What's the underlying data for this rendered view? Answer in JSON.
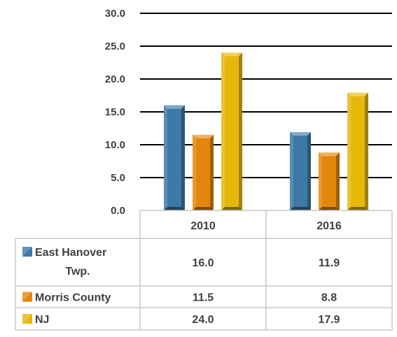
{
  "chart_data": {
    "type": "bar",
    "categories": [
      "2010",
      "2016"
    ],
    "series": [
      {
        "name": "East Hanover Twp.",
        "values": [
          16.0,
          11.9
        ],
        "labels": [
          "16.0",
          "11.9"
        ],
        "color": "#3D79A6"
      },
      {
        "name": "Morris County",
        "values": [
          11.5,
          8.8
        ],
        "labels": [
          "11.5",
          "8.8"
        ],
        "color": "#E3870C"
      },
      {
        "name": "NJ",
        "values": [
          24.0,
          17.9
        ],
        "labels": [
          "24.0",
          "17.9"
        ],
        "color": "#E6B80C"
      }
    ],
    "y_ticks": [
      "0.0",
      "5.0",
      "10.0",
      "15.0",
      "20.0",
      "25.0",
      "30.0"
    ],
    "ylim": [
      0,
      30
    ],
    "grid": true,
    "legend": "data-table",
    "title": "",
    "xlabel": "",
    "ylabel": ""
  }
}
